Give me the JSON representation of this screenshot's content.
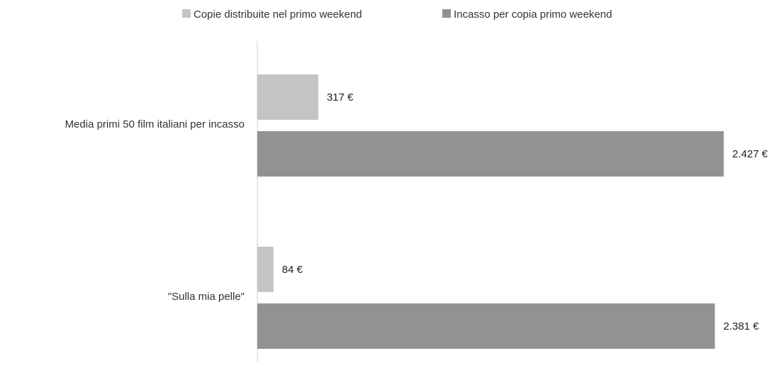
{
  "chart_data": {
    "type": "bar",
    "orientation": "horizontal",
    "categories": [
      "Media primi 50 film italiani per incasso",
      "\"Sulla mia pelle\""
    ],
    "series": [
      {
        "name": "Copie distribuite nel primo weekend",
        "values": [
          317,
          84
        ],
        "labels": [
          "317 €",
          "84 €"
        ],
        "color": "#c4c4c4"
      },
      {
        "name": "Incasso per copia primo weekend",
        "values": [
          2427,
          2381
        ],
        "labels": [
          "2.427 €",
          "2.381 €"
        ],
        "color": "#929292"
      }
    ],
    "xlim": [
      0,
      2500
    ],
    "legend_position": "top",
    "grid": false
  }
}
